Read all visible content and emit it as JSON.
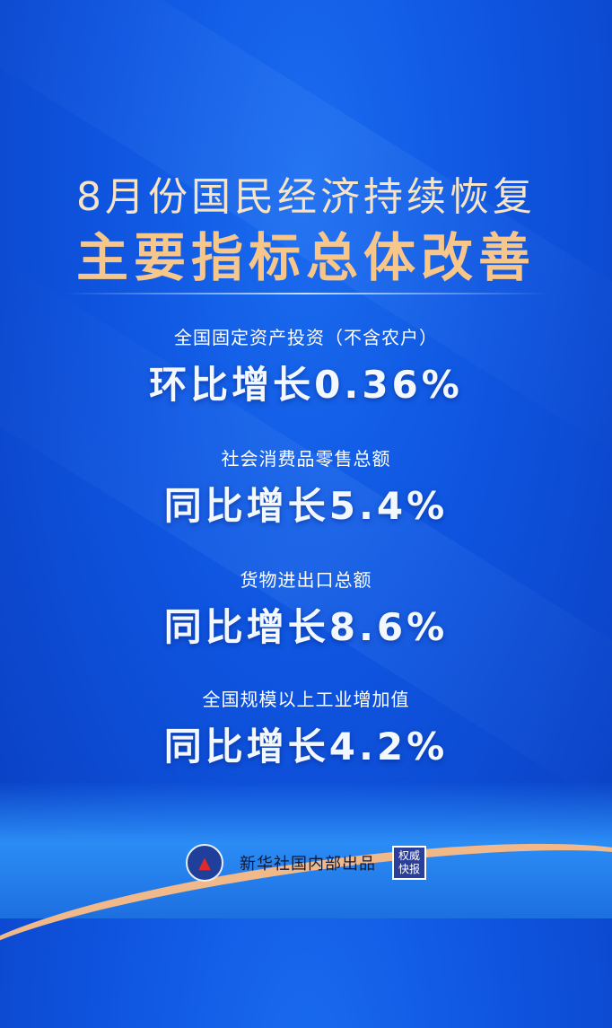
{
  "title": {
    "line1": "8月份国民经济持续恢复",
    "line2": "主要指标总体改善"
  },
  "indicators": [
    {
      "label": "全国固定资产投资（不含农户）",
      "value": "环比增长0.36%"
    },
    {
      "label": "社会消费品零售总额",
      "value": "同比增长5.4%"
    },
    {
      "label": "货物进出口总额",
      "value": "同比增长8.6%"
    },
    {
      "label": "全国规模以上工业增加值",
      "value": "同比增长4.2%"
    }
  ],
  "footer": {
    "credit": "新华社国内部出品",
    "stamp": "权威快报",
    "logo_icon": "xinhua-logo-icon"
  },
  "colors": {
    "background": "#0f55e0",
    "title_cream": "#f7e4c6",
    "title_orange": "#f6c68b"
  }
}
